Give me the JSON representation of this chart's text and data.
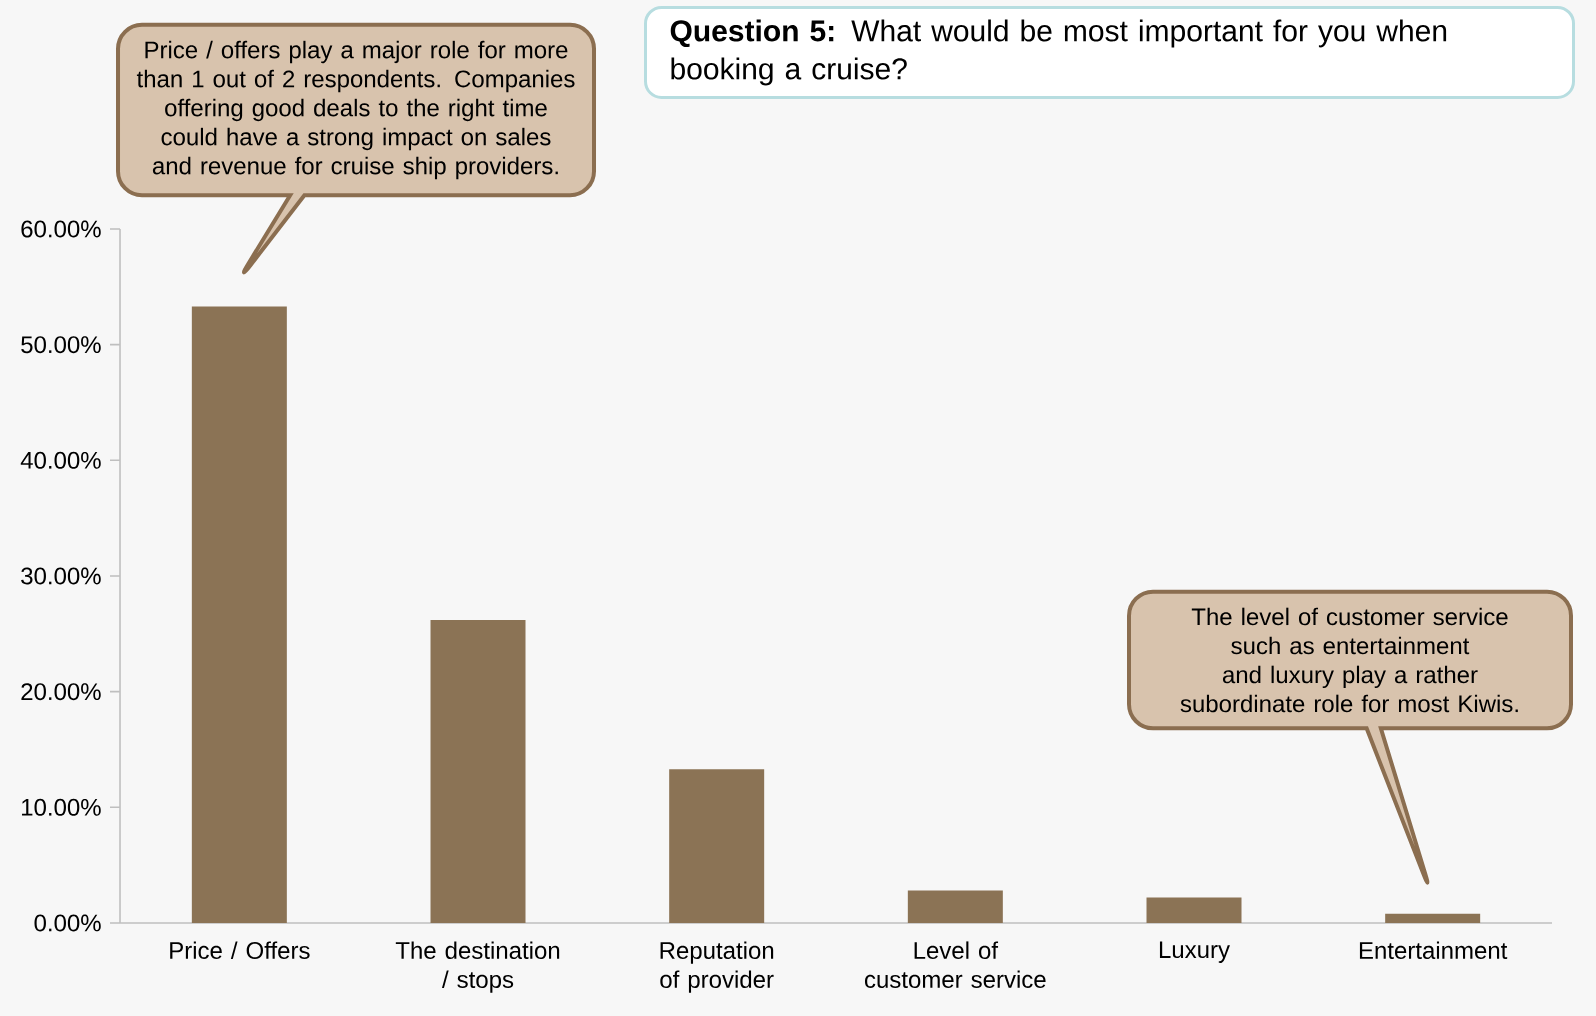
{
  "chart_data": {
    "type": "bar",
    "title": "**Question 5:** What would be most important for you when booking a cruise?",
    "categories": [
      "Price / Offers",
      "The destination / stops",
      "Reputation of provider",
      "Level of customer service",
      "Luxury",
      "Entertainment"
    ],
    "values": [
      53.3,
      26.2,
      13.3,
      2.8,
      2.2,
      0.8
    ],
    "color": "#8b7355",
    "ylim": [
      0,
      60
    ],
    "yticks": [
      {
        "value": 0,
        "label": "0.00%"
      },
      {
        "value": 10,
        "label": "10.00%"
      },
      {
        "value": 20,
        "label": "20.00%"
      },
      {
        "value": 30,
        "label": "30.00%"
      },
      {
        "value": 40,
        "label": "40.00%"
      },
      {
        "value": 50,
        "label": "50.00%"
      },
      {
        "value": 60,
        "label": "60.00%"
      }
    ],
    "annotations": [
      "Price / offers play a major role for more than 1 out of 2 respondents. Companies offering good deals to the right time could have a strong impact on sales and revenue for cruise ship providers.",
      "The level of customer service such as entertainment and luxury play a rather subordinate role for most Kiwis."
    ]
  }
}
